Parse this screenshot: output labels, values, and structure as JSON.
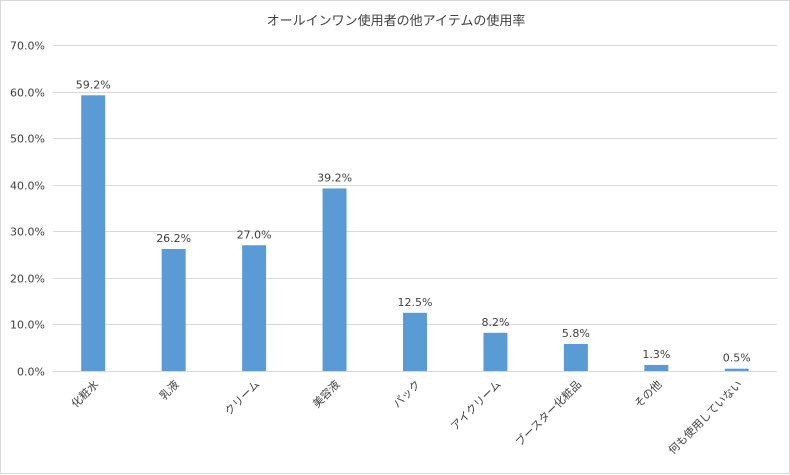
{
  "chart_data": {
    "type": "bar",
    "title": "オールインワン使用者の他アイテムの使用率",
    "categories": [
      "化粧水",
      "乳液",
      "クリーム",
      "美容液",
      "パック",
      "アイクリーム",
      "ブースター化粧品",
      "その他",
      "何も使用していない"
    ],
    "values": [
      59.2,
      26.2,
      27.0,
      39.2,
      12.5,
      8.2,
      5.8,
      1.3,
      0.5
    ],
    "data_labels": [
      "59.2%",
      "26.2%",
      "27.0%",
      "39.2%",
      "12.5%",
      "8.2%",
      "5.8%",
      "1.3%",
      "0.5%"
    ],
    "ylim": [
      0,
      70
    ],
    "yticks": [
      0,
      10,
      20,
      30,
      40,
      50,
      60,
      70
    ],
    "ytick_labels": [
      "0.0%",
      "10.0%",
      "20.0%",
      "30.0%",
      "40.0%",
      "50.0%",
      "60.0%",
      "70.0%"
    ],
    "xlabel": "",
    "ylabel": "",
    "grid": true,
    "legend": "none",
    "bar_color": "#5b9bd5",
    "grid_color": "#d9d9d9"
  }
}
